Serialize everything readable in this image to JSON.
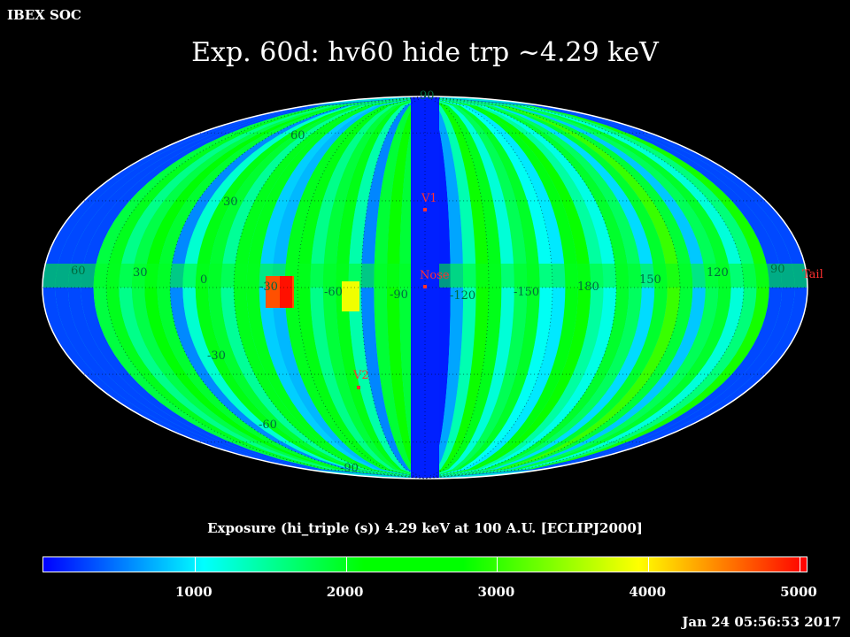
{
  "header": {
    "org": "IBEX SOC",
    "title": "Exp.   60d: hv60 hide trp ~4.29 keV"
  },
  "map": {
    "projection": "mollweide",
    "grid_lat_labels": [
      "90",
      "60",
      "30",
      "-30",
      "-60",
      "-90"
    ],
    "grid_lon_labels": [
      "60",
      "30",
      "0",
      "-30",
      "-60",
      "-90",
      "-120",
      "-150",
      "180",
      "150",
      "120",
      "90"
    ],
    "markers": [
      {
        "name": "V1",
        "color": "#ff3030"
      },
      {
        "name": "Nose",
        "color": "#ff3030"
      },
      {
        "name": "V2",
        "color": "#ff3030"
      },
      {
        "name": "Tail",
        "color": "#ff3030"
      }
    ]
  },
  "colorbar": {
    "title": "Exposure (hi_triple (s))  4.29 keV at 100 A.U. [ECLIPJ2000]",
    "min": 0,
    "max": 5000,
    "labels": [
      "1000",
      "2000",
      "3000",
      "4000",
      "5000"
    ],
    "colors": [
      "#0000ff",
      "#00ffff",
      "#00ff00",
      "#ffff00",
      "#ff0000"
    ]
  },
  "timestamp": "Jan 24 05:56:53 2017"
}
